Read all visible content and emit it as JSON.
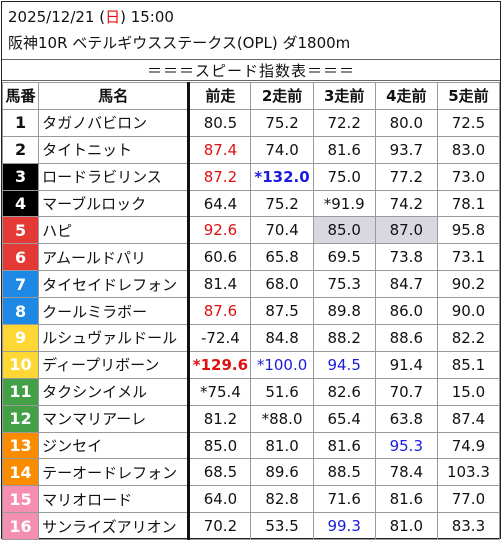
{
  "header": {
    "date_prefix": "2025/12/21 (",
    "weekday": "日",
    "date_suffix": ") 15:00",
    "race": "阪神10R ベテルギウスステークス(OPL) ダ1800m",
    "section_title": "＝＝＝スピード指数表＝＝＝"
  },
  "columns": [
    "馬番",
    "馬名",
    "前走",
    "2走前",
    "3走前",
    "4走前",
    "5走前"
  ],
  "colors": {
    "red": "#e01010",
    "blue": "#1a1ae0",
    "highlight": "#d8d8e0",
    "sunday": "#e01010"
  },
  "rows": [
    {
      "no": "1",
      "name": "タガノバビロン",
      "gate": 1,
      "vals": [
        {
          "t": "80.5"
        },
        {
          "t": "75.2"
        },
        {
          "t": "72.2"
        },
        {
          "t": "80.0"
        },
        {
          "t": "72.5"
        }
      ]
    },
    {
      "no": "2",
      "name": "タイトニット",
      "gate": 1,
      "vals": [
        {
          "t": "87.4",
          "c": "red"
        },
        {
          "t": "74.0"
        },
        {
          "t": "81.6"
        },
        {
          "t": "93.7"
        },
        {
          "t": "83.0"
        }
      ]
    },
    {
      "no": "3",
      "name": "ロードラビリンス",
      "gate": 2,
      "vals": [
        {
          "t": "87.2",
          "c": "red"
        },
        {
          "t": "*132.0",
          "c": "blue",
          "b": true
        },
        {
          "t": "75.0"
        },
        {
          "t": "77.2"
        },
        {
          "t": "73.0"
        }
      ]
    },
    {
      "no": "4",
      "name": "マーブルロック",
      "gate": 2,
      "vals": [
        {
          "t": "64.4"
        },
        {
          "t": "75.2"
        },
        {
          "t": "*91.9"
        },
        {
          "t": "74.2"
        },
        {
          "t": "78.1"
        }
      ]
    },
    {
      "no": "5",
      "name": "ハピ",
      "gate": 3,
      "vals": [
        {
          "t": "92.6",
          "c": "red"
        },
        {
          "t": "70.4"
        },
        {
          "t": "85.0",
          "h": true
        },
        {
          "t": "87.0",
          "h": true
        },
        {
          "t": "95.8"
        }
      ]
    },
    {
      "no": "6",
      "name": "アムールドパリ",
      "gate": 3,
      "vals": [
        {
          "t": "60.6"
        },
        {
          "t": "65.8"
        },
        {
          "t": "69.5"
        },
        {
          "t": "73.8"
        },
        {
          "t": "73.1"
        }
      ]
    },
    {
      "no": "7",
      "name": "タイセイドレフォン",
      "gate": 4,
      "vals": [
        {
          "t": "81.4"
        },
        {
          "t": "68.0"
        },
        {
          "t": "75.3"
        },
        {
          "t": "84.7"
        },
        {
          "t": "90.2"
        }
      ]
    },
    {
      "no": "8",
      "name": "クールミラボー",
      "gate": 4,
      "vals": [
        {
          "t": "87.6",
          "c": "red"
        },
        {
          "t": "87.5"
        },
        {
          "t": "89.8"
        },
        {
          "t": "86.0"
        },
        {
          "t": "90.0"
        }
      ]
    },
    {
      "no": "9",
      "name": "ルシュヴァルドール",
      "gate": 5,
      "vals": [
        {
          "t": "-72.4"
        },
        {
          "t": "84.8"
        },
        {
          "t": "88.2"
        },
        {
          "t": "88.6"
        },
        {
          "t": "82.2"
        }
      ]
    },
    {
      "no": "10",
      "name": "ディープリボーン",
      "gate": 5,
      "vals": [
        {
          "t": "*129.6",
          "c": "red",
          "b": true
        },
        {
          "t": "*100.0",
          "c": "blue"
        },
        {
          "t": "94.5",
          "c": "blue"
        },
        {
          "t": "91.4"
        },
        {
          "t": "85.1"
        }
      ]
    },
    {
      "no": "11",
      "name": "タクシンイメル",
      "gate": 6,
      "vals": [
        {
          "t": "*75.4"
        },
        {
          "t": "51.6"
        },
        {
          "t": "82.6"
        },
        {
          "t": "70.7"
        },
        {
          "t": "15.0"
        }
      ]
    },
    {
      "no": "12",
      "name": "マンマリアーレ",
      "gate": 6,
      "vals": [
        {
          "t": "81.2"
        },
        {
          "t": "*88.0"
        },
        {
          "t": "65.4"
        },
        {
          "t": "63.8"
        },
        {
          "t": "87.4"
        }
      ]
    },
    {
      "no": "13",
      "name": "ジンセイ",
      "gate": 7,
      "vals": [
        {
          "t": "85.0"
        },
        {
          "t": "81.0"
        },
        {
          "t": "81.6"
        },
        {
          "t": "95.3",
          "c": "blue"
        },
        {
          "t": "74.9"
        }
      ]
    },
    {
      "no": "14",
      "name": "テーオードレフォン",
      "gate": 7,
      "vals": [
        {
          "t": "68.5"
        },
        {
          "t": "89.6"
        },
        {
          "t": "88.5"
        },
        {
          "t": "78.4"
        },
        {
          "t": "103.3"
        }
      ]
    },
    {
      "no": "15",
      "name": "マリオロード",
      "gate": 8,
      "vals": [
        {
          "t": "64.0"
        },
        {
          "t": "82.8"
        },
        {
          "t": "71.6"
        },
        {
          "t": "81.6"
        },
        {
          "t": "77.0"
        }
      ]
    },
    {
      "no": "16",
      "name": "サンライズアリオン",
      "gate": 8,
      "vals": [
        {
          "t": "70.2"
        },
        {
          "t": "53.5"
        },
        {
          "t": "99.3",
          "c": "blue"
        },
        {
          "t": "81.0"
        },
        {
          "t": "83.3"
        }
      ]
    }
  ]
}
